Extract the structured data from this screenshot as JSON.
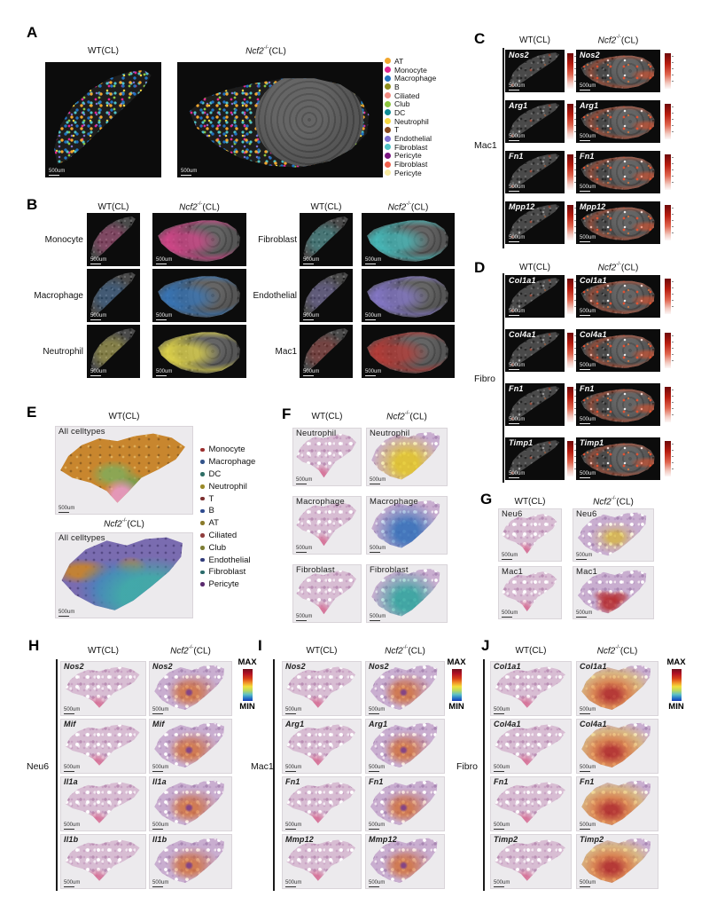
{
  "figure": {
    "wt_title": "WT(CL)",
    "ko_title": {
      "gene": "Ncf2",
      "sup": "-/-",
      "rest": "(CL)"
    },
    "scale_bar": "500um",
    "panels": {
      "A": {
        "letter": "A",
        "legend": [
          {
            "label": "AT",
            "color": "#f2a72e"
          },
          {
            "label": "Monocyte",
            "color": "#e02690"
          },
          {
            "label": "Macrophage",
            "color": "#2172c0"
          },
          {
            "label": "B",
            "color": "#8f8f1e"
          },
          {
            "label": "Ciliated",
            "color": "#f28b82"
          },
          {
            "label": "Club",
            "color": "#8cc63f"
          },
          {
            "label": "DC",
            "color": "#0e8c96"
          },
          {
            "label": "Neutrophil",
            "color": "#f7d842"
          },
          {
            "label": "T",
            "color": "#8b4a1e"
          },
          {
            "label": "Endothelial",
            "color": "#7d6fd0"
          },
          {
            "label": "Fibroblast",
            "color": "#4fc3c7"
          },
          {
            "label": "Pericyte",
            "color": "#7a1580"
          },
          {
            "label": "Fibroblast",
            "color": "#f0604d"
          },
          {
            "label": "Pericyte",
            "color": "#f7e9a0"
          }
        ]
      },
      "B": {
        "letter": "B",
        "groups": [
          {
            "rows": [
              {
                "label": "Monocyte",
                "color": "#e0458f"
              },
              {
                "label": "Macrophage",
                "color": "#3579c1"
              },
              {
                "label": "Neutrophil",
                "color": "#efe24a"
              }
            ]
          },
          {
            "rows": [
              {
                "label": "Fibroblast",
                "color": "#46c6c6"
              },
              {
                "label": "Endothelial",
                "color": "#8a7cd4"
              },
              {
                "label": "Mac1",
                "color": "#c03a35"
              }
            ]
          }
        ]
      },
      "C": {
        "letter": "C",
        "side_label": "Mac1",
        "genes": [
          "Nos2",
          "Arg1",
          "Fn1",
          "Mpp12"
        ],
        "expression_color": "#c42810"
      },
      "D": {
        "letter": "D",
        "side_label": "Fibro",
        "genes": [
          "Col1a1",
          "Col4a1",
          "Fn1",
          "Timp1"
        ],
        "expression_color": "#c42810"
      },
      "E": {
        "letter": "E",
        "image_label": "All celltypes",
        "legend": [
          {
            "label": "Monocyte",
            "color": "#9c2f2f"
          },
          {
            "label": "Macrophage",
            "color": "#34558b"
          },
          {
            "label": "DC",
            "color": "#2e6e65"
          },
          {
            "label": "Neutrophil",
            "color": "#9a8a28"
          },
          {
            "label": "T",
            "color": "#7c3030"
          },
          {
            "label": "B",
            "color": "#2f4b8f"
          },
          {
            "label": "AT",
            "color": "#8a7a2a"
          },
          {
            "label": "Ciliated",
            "color": "#8f3d3d"
          },
          {
            "label": "Club",
            "color": "#7d7d35"
          },
          {
            "label": "Endothelial",
            "color": "#323c7a"
          },
          {
            "label": "Fibroblast",
            "color": "#2b6b6b"
          },
          {
            "label": "Pericyte",
            "color": "#5a2a6e"
          }
        ]
      },
      "F": {
        "letter": "F",
        "rows": [
          {
            "label": "Neutrophil",
            "color": "#e3c621"
          },
          {
            "label": "Macrophage",
            "color": "#2e6db8"
          },
          {
            "label": "Fibroblast",
            "color": "#2ba49c"
          }
        ]
      },
      "G": {
        "letter": "G",
        "rows": [
          {
            "label": "Neu6",
            "color": "#d8b62a"
          },
          {
            "label": "Mac1",
            "color": "#b42222"
          }
        ]
      },
      "H": {
        "letter": "H",
        "side_label": "Neu6",
        "genes": [
          "Nos2",
          "Mif",
          "Il1a",
          "Il1b"
        ],
        "colorbar": {
          "max": "MAX",
          "min": "MIN"
        }
      },
      "I": {
        "letter": "I",
        "side_label": "Mac1",
        "genes": [
          "Nos2",
          "Arg1",
          "Fn1",
          "Mmp12"
        ],
        "colorbar": {
          "max": "MAX",
          "min": "MIN"
        }
      },
      "J": {
        "letter": "J",
        "side_label": "Fibro",
        "genes": [
          "Col1a1",
          "Col4a1",
          "Fn1",
          "Timp2"
        ],
        "colorbar": {
          "max": "MAX",
          "min": "MIN"
        }
      }
    }
  }
}
